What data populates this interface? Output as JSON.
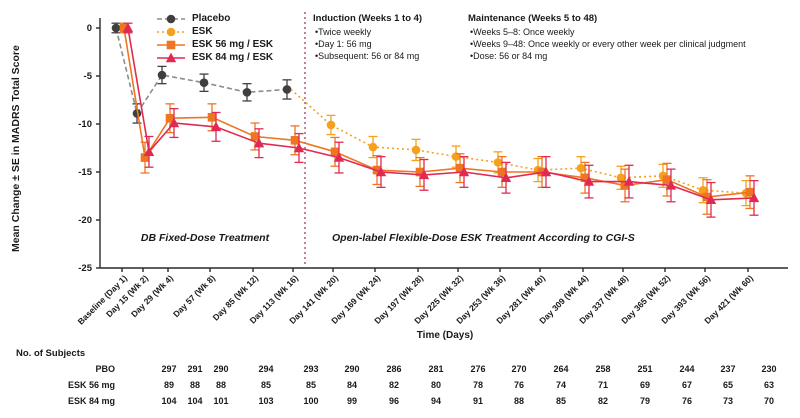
{
  "figure": {
    "y_axis_label": "Mean Change ± SE in MADRS Total Score",
    "x_axis_label": "Time (Days)",
    "phase_labels": {
      "left": "DB Fixed-Dose Treatment",
      "right": "Open-label Flexible-Dose ESK Treatment According to CGI-S"
    },
    "annotations": {
      "induction": {
        "title": "Induction (Weeks 1 to 4)",
        "bullets": [
          "Twice weekly",
          "Day 1: 56 mg",
          "Subsequent: 56 or 84 mg"
        ]
      },
      "maintenance": {
        "title": "Maintenance (Weeks 5 to 48)",
        "bullets": [
          "Weeks 5–8: Once weekly",
          "Weeks 9–48: Once weekly or every other week per clinical judgment",
          "Dose: 56 or 84 mg"
        ]
      }
    },
    "subjects_table": {
      "title": "No. of Subjects",
      "rows": [
        {
          "label": "PBO",
          "values": [
            297,
            291,
            290,
            294,
            293,
            290,
            286,
            281,
            276,
            270,
            264,
            258,
            251,
            244,
            237,
            230
          ]
        },
        {
          "label": "ESK 56 mg",
          "values": [
            89,
            88,
            88,
            85,
            85,
            84,
            82,
            80,
            78,
            76,
            74,
            71,
            69,
            67,
            65,
            63
          ]
        },
        {
          "label": "ESK 84 mg",
          "values": [
            104,
            104,
            101,
            103,
            100,
            99,
            96,
            94,
            91,
            88,
            85,
            82,
            79,
            76,
            73,
            70
          ]
        }
      ]
    }
  },
  "chart_data": {
    "type": "line",
    "title": "",
    "xlabel": "Time (Days)",
    "ylabel": "Mean Change ± SE in MADRS Total Score",
    "ylim": [
      -25,
      0
    ],
    "yticks": [
      0,
      -5,
      -10,
      -15,
      -20,
      -25
    ],
    "grid": false,
    "legend_position": "top-left-inside",
    "separator_after_category_index": 5,
    "categories": [
      "Baseline (Day 1)",
      "Day 15 (Wk 2)",
      "Day 29 (Wk 4)",
      "Day 57 (Wk 8)",
      "Day 85 (Wk 12)",
      "Day 113 (Wk 16)",
      "Day 141 (Wk 20)",
      "Day 169 (Wk 24)",
      "Day 197 (Wk 28)",
      "Day 225 (Wk 32)",
      "Day 253 (Wk 36)",
      "Day 281 (Wk 40)",
      "Day 309 (Wk 44)",
      "Day 337 (Wk 48)",
      "Day 365 (Wk 52)",
      "Day 393 (Wk 56)",
      "Day 421 (Wk 60)"
    ],
    "series": [
      {
        "name": "Placebo",
        "marker": "circle",
        "color": "#3f3f41",
        "line_color": "#8d8d8d",
        "line_style": "dashed",
        "start_index": 0,
        "bridge_first": false,
        "values": [
          0.0,
          -8.9,
          -4.9,
          -5.7,
          -6.7,
          -6.4
        ],
        "se": [
          0.5,
          1.0,
          0.9,
          0.9,
          0.9,
          1.0
        ]
      },
      {
        "name": "ESK",
        "marker": "circle",
        "color": "#f6a11d",
        "line_color": "#f6a11d",
        "line_style": "dotted",
        "start_index": 5,
        "bridge_first": true,
        "values": [
          -6.4,
          -10.1,
          -12.4,
          -12.7,
          -13.4,
          -14.0,
          -14.8,
          -14.6,
          -15.6,
          -15.4,
          -16.9,
          -17.2
        ],
        "se": [
          0,
          1.0,
          1.1,
          1.1,
          1.1,
          1.1,
          1.2,
          1.2,
          1.2,
          1.2,
          1.3,
          1.3
        ]
      },
      {
        "name": "ESK 56 mg / ESK",
        "marker": "square",
        "color": "#ee7623",
        "line_color": "#ee7623",
        "line_style": "solid",
        "start_index": 0,
        "bridge_first": false,
        "values": [
          0.0,
          -13.5,
          -9.4,
          -9.3,
          -11.3,
          -11.7,
          -12.9,
          -14.8,
          -15.0,
          -14.6,
          -15.0,
          -15.0,
          -15.6,
          -16.4,
          -15.8,
          -17.6,
          -17.1
        ],
        "se": [
          0.5,
          1.6,
          1.5,
          1.4,
          1.4,
          1.5,
          1.5,
          1.5,
          1.5,
          1.5,
          1.6,
          1.6,
          1.6,
          1.7,
          1.7,
          1.8,
          1.7
        ]
      },
      {
        "name": "ESK 84 mg / ESK",
        "marker": "triangle",
        "color": "#e12a52",
        "line_color": "#e12a52",
        "line_style": "solid",
        "start_index": 0,
        "bridge_first": false,
        "values": [
          0.0,
          -12.9,
          -9.9,
          -10.3,
          -12.0,
          -12.5,
          -13.5,
          -15.0,
          -15.3,
          -15.0,
          -15.6,
          -15.0,
          -16.0,
          -16.0,
          -16.4,
          -17.9,
          -17.7
        ],
        "se": [
          0.5,
          1.6,
          1.5,
          1.5,
          1.5,
          1.5,
          1.6,
          1.6,
          1.6,
          1.6,
          1.6,
          1.6,
          1.7,
          1.7,
          1.7,
          1.8,
          1.8
        ]
      }
    ]
  }
}
